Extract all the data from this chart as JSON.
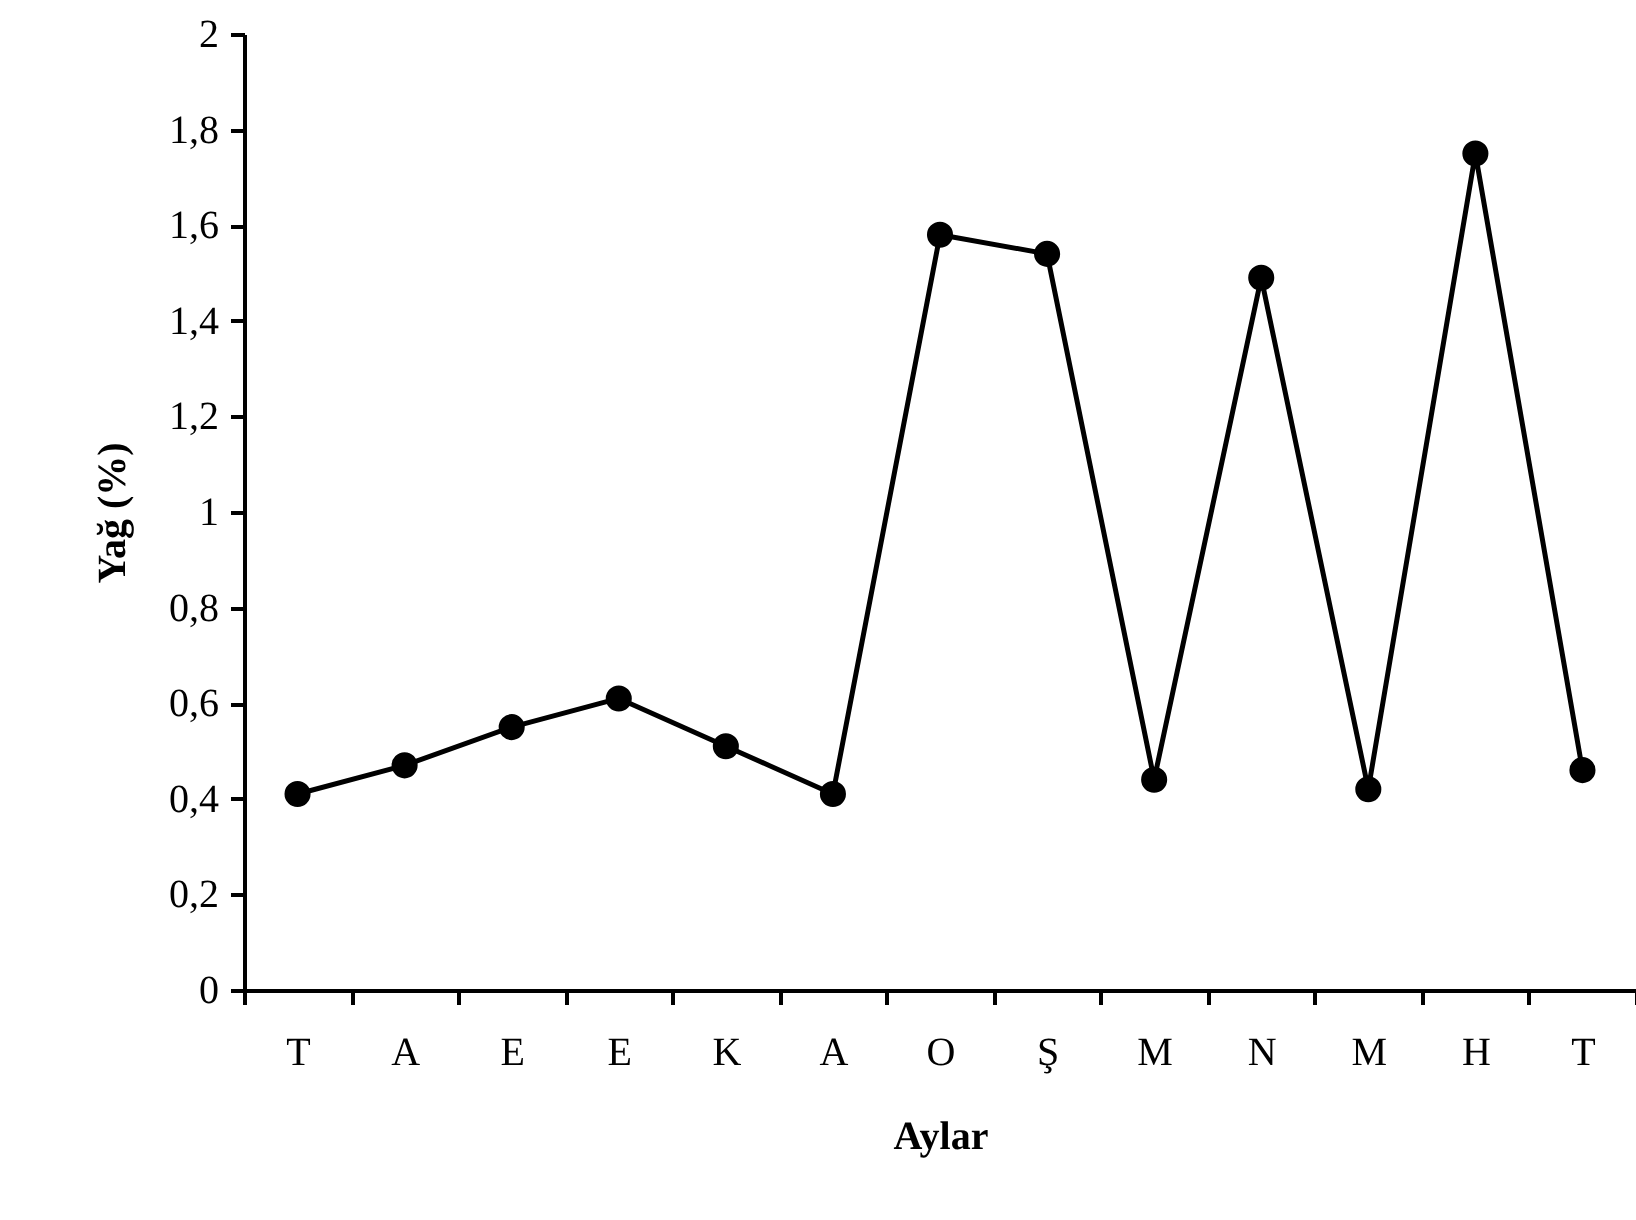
{
  "chart_data": {
    "type": "line",
    "xlabel": "Aylar",
    "ylabel": "Yağ (%)",
    "categories": [
      "T",
      "A",
      "E",
      "E",
      "K",
      "A",
      "O",
      "Ş",
      "M",
      "N",
      "M",
      "H",
      "T"
    ],
    "series": [
      {
        "color": "#000000",
        "values": [
          0.41,
          0.47,
          0.55,
          0.61,
          0.51,
          0.41,
          1.58,
          1.54,
          0.44,
          1.49,
          0.42,
          1.75,
          0.46
        ]
      }
    ],
    "ylim": [
      0,
      2
    ],
    "yticks": [
      0,
      {
        "value": 0.2,
        "label": "0,2"
      },
      {
        "value": 0.4,
        "label": "0,4"
      },
      {
        "value": 0.6,
        "label": "0,6"
      },
      {
        "value": 0.8,
        "label": "0,8"
      },
      1,
      {
        "value": 1.2,
        "label": "1,2"
      },
      {
        "value": 1.4,
        "label": "1,4"
      },
      {
        "value": 1.6,
        "label": "1,6"
      },
      {
        "value": 1.8,
        "label": "1,8"
      },
      2
    ],
    "grid": false,
    "marker": "circle",
    "line_style": "solid"
  }
}
